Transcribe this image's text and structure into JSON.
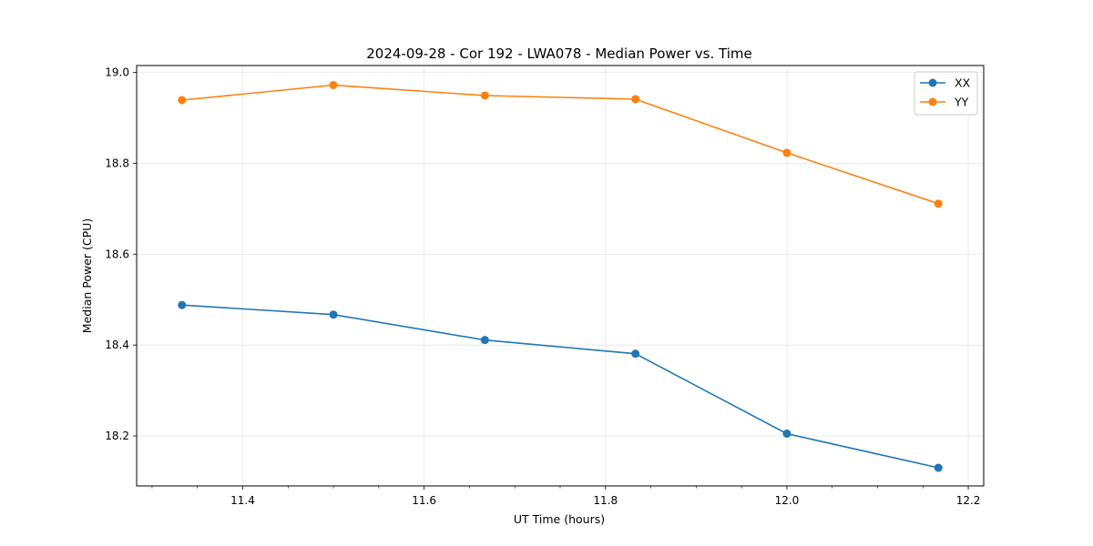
{
  "chart_data": {
    "type": "line",
    "title": "2024-09-28 - Cor 192 - LWA078 - Median Power vs. Time",
    "xlabel": "UT Time (hours)",
    "ylabel": "Median Power (CPU)",
    "xlim": [
      11.283,
      12.217
    ],
    "ylim": [
      18.09,
      19.015
    ],
    "x_ticks": [
      11.4,
      11.6,
      11.8,
      12.0,
      12.2
    ],
    "x_tick_labels": [
      "11.4",
      "11.6",
      "11.8",
      "12.0",
      "12.2"
    ],
    "x_minor_ticks": [
      11.3,
      11.35,
      11.45,
      11.5,
      11.55,
      11.65,
      11.7,
      11.75,
      11.85,
      11.9,
      11.95,
      12.05,
      12.1,
      12.15
    ],
    "y_ticks": [
      18.2,
      18.4,
      18.6,
      18.8,
      19.0
    ],
    "y_tick_labels": [
      "18.2",
      "18.4",
      "18.6",
      "18.8",
      "19.0"
    ],
    "grid": true,
    "legend_position": "top-right",
    "x": [
      11.333,
      11.5,
      11.667,
      11.833,
      12.0,
      12.167
    ],
    "series": [
      {
        "name": "XX",
        "color": "#1f77b4",
        "values": [
          18.488,
          18.467,
          18.411,
          18.381,
          18.205,
          18.13
        ]
      },
      {
        "name": "YY",
        "color": "#ff7f0e",
        "values": [
          18.939,
          18.972,
          18.949,
          18.941,
          18.823,
          18.711
        ]
      }
    ]
  }
}
